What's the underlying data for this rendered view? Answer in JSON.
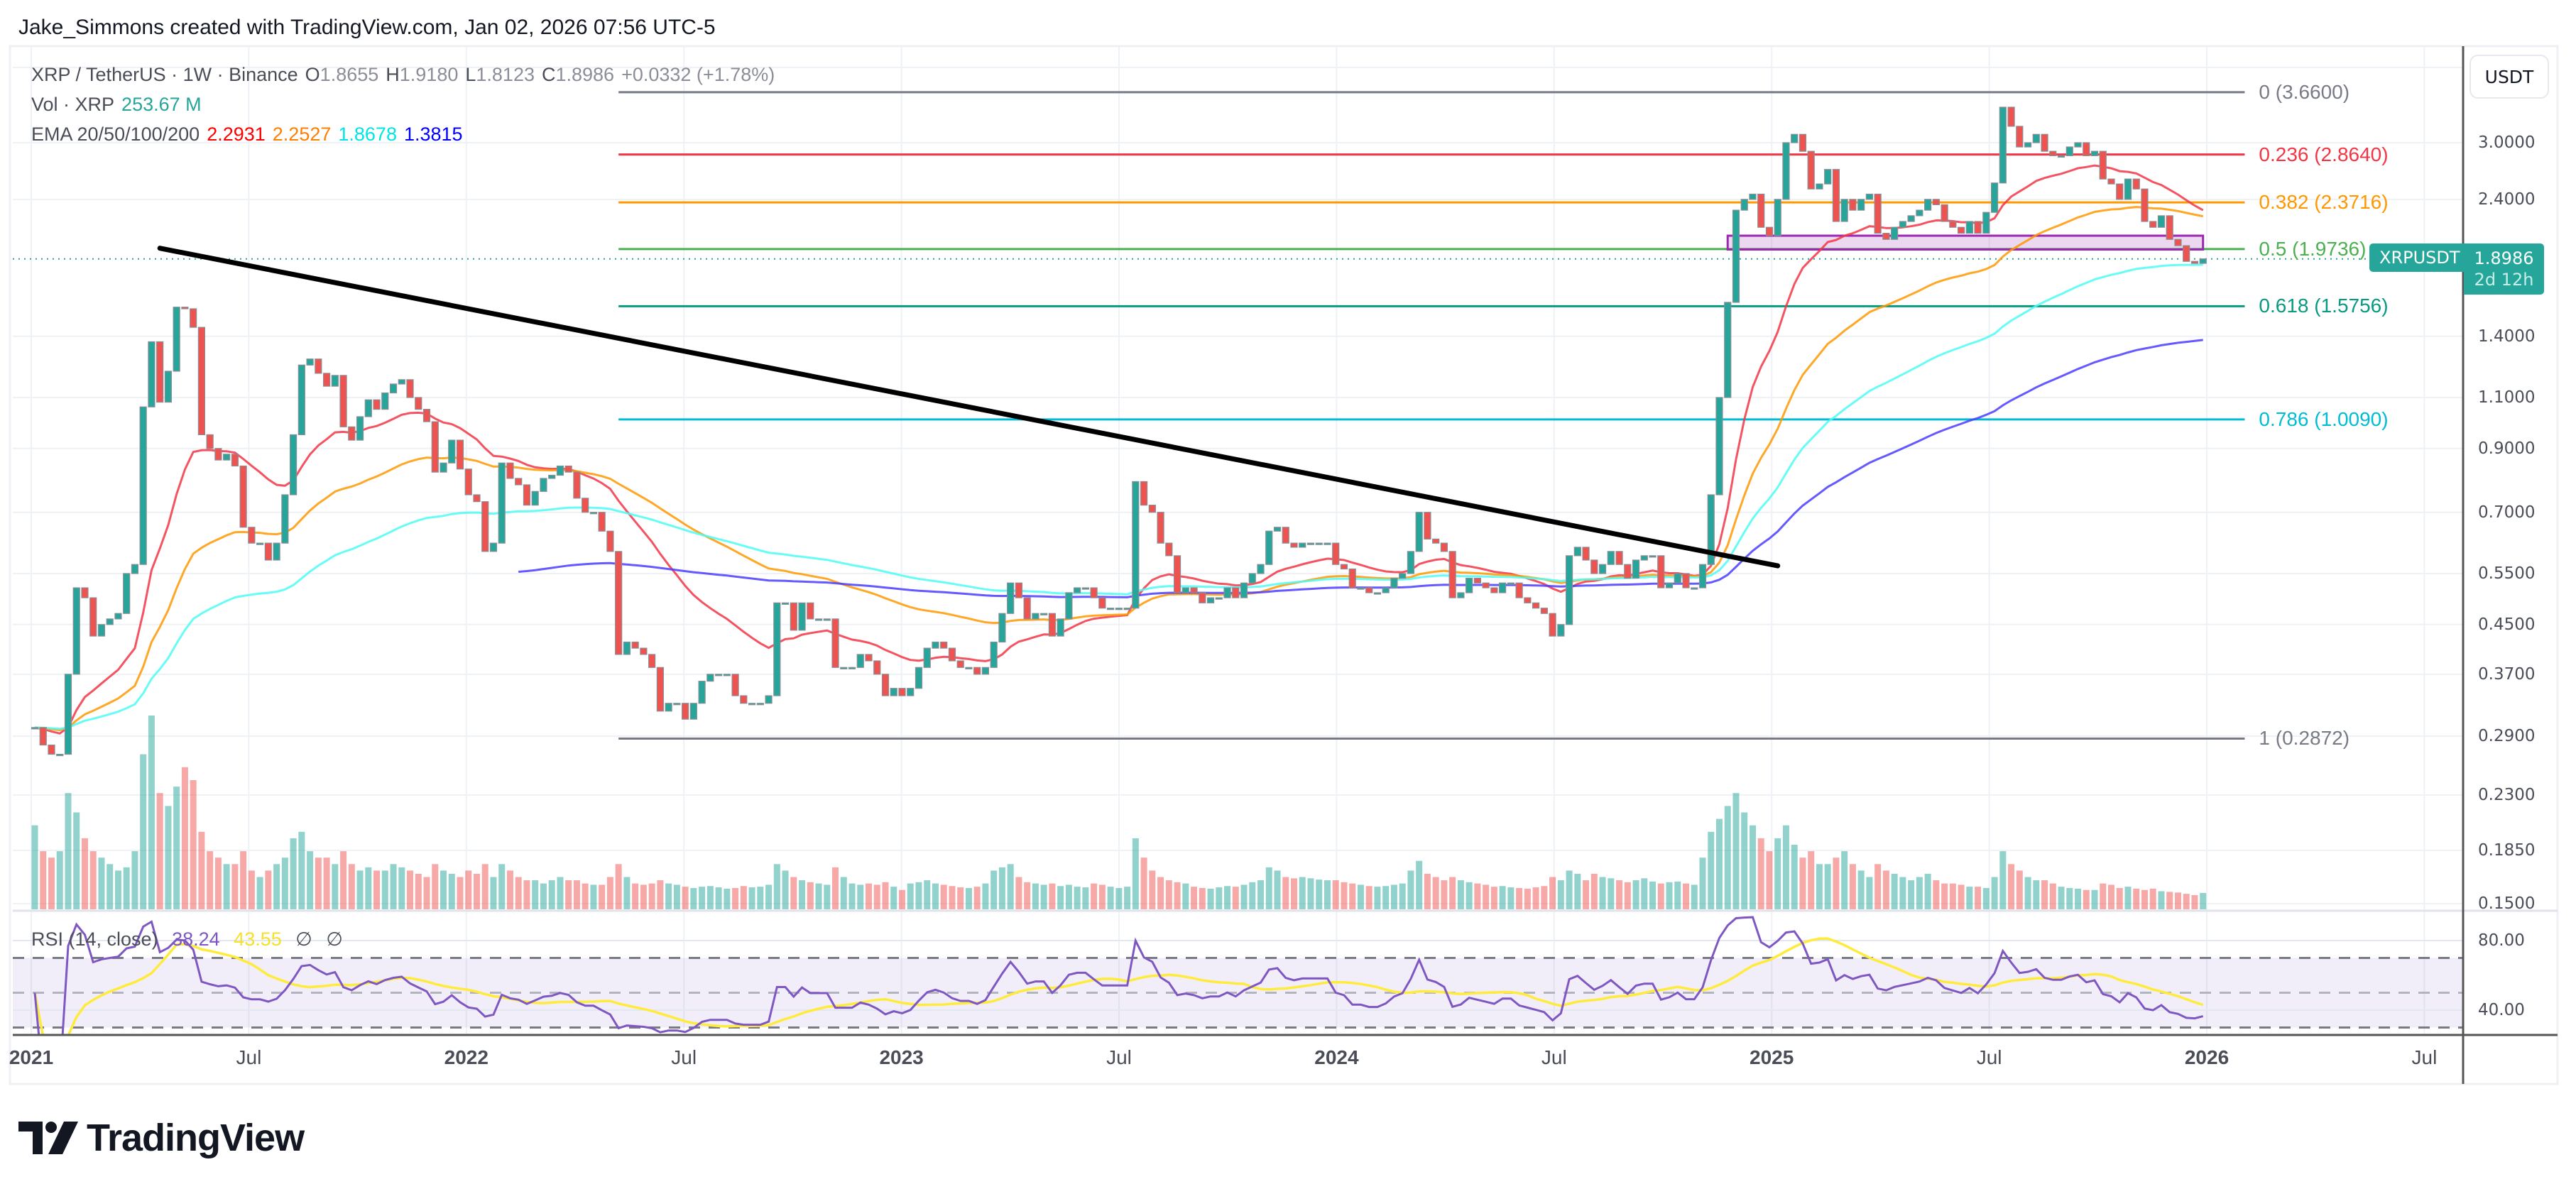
{
  "header": {
    "credit": "Jake_Simmons created with TradingView.com, Jan 02, 2026 07:56 UTC-5"
  },
  "legend": {
    "symbol": "XRP / TetherUS · 1W · Binance",
    "o_label": "O",
    "o": "1.8655",
    "h_label": "H",
    "h": "1.9180",
    "l_label": "L",
    "l": "1.8123",
    "c_label": "C",
    "c": "1.8986",
    "change": "+0.0332 (+1.78%)",
    "vol_label": "Vol · XRP",
    "vol": "253.67 M",
    "ema_label": "EMA 20/50/100/200",
    "ema_values": [
      "2.2931",
      "2.2527",
      "1.8678",
      "1.3815"
    ]
  },
  "price_axis": {
    "currency": "USDT",
    "ticks": [
      {
        "value": 3.0,
        "label": "3.0000"
      },
      {
        "value": 2.4,
        "label": "2.4000"
      },
      {
        "value": 1.4,
        "label": "1.4000"
      },
      {
        "value": 1.1,
        "label": "1.1000"
      },
      {
        "value": 0.9,
        "label": "0.9000"
      },
      {
        "value": 0.7,
        "label": "0.7000"
      },
      {
        "value": 0.55,
        "label": "0.5500"
      },
      {
        "value": 0.45,
        "label": "0.4500"
      },
      {
        "value": 0.37,
        "label": "0.3700"
      },
      {
        "value": 0.29,
        "label": "0.2900"
      },
      {
        "value": 0.23,
        "label": "0.2300"
      },
      {
        "value": 0.185,
        "label": "0.1850"
      },
      {
        "value": 0.15,
        "label": "0.1500"
      }
    ]
  },
  "price_tag": {
    "symbol": "XRPUSDT",
    "price": "1.8986",
    "countdown": "2d 12h"
  },
  "fib": [
    {
      "ratio": "0",
      "price": 3.66,
      "label": "0 (3.6600)",
      "color": "#787b86"
    },
    {
      "ratio": "0.236",
      "price": 2.864,
      "label": "0.236 (2.8640)",
      "color": "#f23645"
    },
    {
      "ratio": "0.382",
      "price": 2.3716,
      "label": "0.382 (2.3716)",
      "color": "#ff9800"
    },
    {
      "ratio": "0.5",
      "price": 1.9736,
      "label": "0.5 (1.9736)",
      "color": "#4caf50"
    },
    {
      "ratio": "0.618",
      "price": 1.5756,
      "label": "0.618 (1.5756)",
      "color": "#089981"
    },
    {
      "ratio": "0.786",
      "price": 1.009,
      "label": "0.786 (1.0090)",
      "color": "#00bcd4"
    },
    {
      "ratio": "1",
      "price": 0.2872,
      "label": "1 (0.2872)",
      "color": "#787b86"
    }
  ],
  "time_axis": [
    "2021",
    "Jul",
    "2022",
    "Jul",
    "2023",
    "Jul",
    "2024",
    "Jul",
    "2025",
    "Jul",
    "2026",
    "Jul"
  ],
  "rsi": {
    "label": "RSI (14, close)",
    "value": "38.24",
    "ma_value": "43.55",
    "flags": [
      "∅",
      "∅"
    ],
    "ticks": [
      {
        "value": 80,
        "label": "80.00"
      },
      {
        "value": 40,
        "label": "40.00"
      }
    ],
    "bands": [
      70,
      50,
      30
    ],
    "colors": {
      "rsi": "#7e57c2",
      "ma": "#ffeb3b"
    }
  },
  "logo": "TradingView",
  "chart_data": {
    "type": "candlestick",
    "interval": "1W",
    "yscale": "log",
    "ylim": [
      0.14,
      4.2
    ],
    "colors": {
      "up": "#26a69a",
      "down": "#ef5350",
      "ema": [
        "#ff0000",
        "#ff8000",
        "#00ffff",
        "#0000ff"
      ]
    },
    "ema_periods": [
      20,
      50,
      100,
      200
    ],
    "closes": [
      0.3,
      0.28,
      0.27,
      0.27,
      0.37,
      0.52,
      0.5,
      0.43,
      0.45,
      0.46,
      0.47,
      0.55,
      0.57,
      1.06,
      1.37,
      1.08,
      1.22,
      1.57,
      1.56,
      1.45,
      0.95,
      0.9,
      0.86,
      0.88,
      0.84,
      0.66,
      0.62,
      0.62,
      0.58,
      0.62,
      0.75,
      0.95,
      1.25,
      1.28,
      1.21,
      1.15,
      1.2,
      0.98,
      0.93,
      1.02,
      1.09,
      1.05,
      1.12,
      1.16,
      1.18,
      1.1,
      1.05,
      1.0,
      0.82,
      0.85,
      0.93,
      0.83,
      0.75,
      0.73,
      0.6,
      0.62,
      0.85,
      0.8,
      0.78,
      0.72,
      0.76,
      0.8,
      0.81,
      0.84,
      0.82,
      0.74,
      0.7,
      0.7,
      0.65,
      0.6,
      0.4,
      0.42,
      0.41,
      0.4,
      0.38,
      0.32,
      0.33,
      0.33,
      0.31,
      0.33,
      0.36,
      0.37,
      0.37,
      0.37,
      0.34,
      0.33,
      0.33,
      0.33,
      0.34,
      0.49,
      0.49,
      0.44,
      0.49,
      0.46,
      0.46,
      0.46,
      0.38,
      0.38,
      0.38,
      0.4,
      0.39,
      0.37,
      0.34,
      0.35,
      0.34,
      0.35,
      0.38,
      0.41,
      0.42,
      0.41,
      0.39,
      0.38,
      0.38,
      0.37,
      0.38,
      0.42,
      0.47,
      0.53,
      0.5,
      0.46,
      0.47,
      0.47,
      0.43,
      0.46,
      0.51,
      0.52,
      0.52,
      0.5,
      0.48,
      0.48,
      0.48,
      0.48,
      0.79,
      0.72,
      0.7,
      0.62,
      0.59,
      0.51,
      0.52,
      0.51,
      0.49,
      0.5,
      0.5,
      0.52,
      0.5,
      0.53,
      0.55,
      0.57,
      0.65,
      0.66,
      0.62,
      0.61,
      0.62,
      0.62,
      0.62,
      0.62,
      0.57,
      0.56,
      0.52,
      0.52,
      0.51,
      0.51,
      0.52,
      0.54,
      0.55,
      0.6,
      0.7,
      0.63,
      0.62,
      0.6,
      0.5,
      0.51,
      0.54,
      0.53,
      0.52,
      0.51,
      0.53,
      0.53,
      0.5,
      0.49,
      0.48,
      0.47,
      0.43,
      0.45,
      0.59,
      0.61,
      0.58,
      0.55,
      0.57,
      0.6,
      0.57,
      0.54,
      0.58,
      0.59,
      0.59,
      0.52,
      0.53,
      0.55,
      0.52,
      0.52,
      0.57,
      0.75,
      1.1,
      1.6,
      2.3,
      2.4,
      2.45,
      2.15,
      2.08,
      2.4,
      3.0,
      3.1,
      2.9,
      2.5,
      2.55,
      2.7,
      2.2,
      2.4,
      2.3,
      2.4,
      2.45,
      2.1,
      2.05,
      2.15,
      2.2,
      2.25,
      2.3,
      2.4,
      2.35,
      2.2,
      2.15,
      2.1,
      2.2,
      2.1,
      2.28,
      2.56,
      3.45,
      3.2,
      2.95,
      3.0,
      3.1,
      2.9,
      2.85,
      2.85,
      2.95,
      3.0,
      2.85,
      2.9,
      2.6,
      2.55,
      2.4,
      2.6,
      2.5,
      2.2,
      2.15,
      2.25,
      2.05,
      2.0,
      1.88,
      1.8654,
      1.8986
    ],
    "volumes_m": [
      1300,
      900,
      800,
      900,
      1800,
      1500,
      1100,
      900,
      800,
      700,
      600,
      650,
      900,
      2400,
      3000,
      1800,
      1600,
      1900,
      2200,
      2000,
      1200,
      900,
      800,
      700,
      700,
      900,
      600,
      500,
      600,
      700,
      800,
      1100,
      1200,
      900,
      800,
      800,
      700,
      900,
      700,
      600,
      650,
      600,
      600,
      700,
      650,
      600,
      550,
      500,
      700,
      600,
      550,
      500,
      600,
      550,
      700,
      500,
      700,
      600,
      500,
      450,
      450,
      400,
      450,
      500,
      450,
      450,
      400,
      380,
      380,
      500,
      700,
      500,
      400,
      380,
      400,
      450,
      400,
      380,
      350,
      330,
      350,
      360,
      340,
      320,
      330,
      360,
      340,
      350,
      380,
      700,
      600,
      500,
      450,
      420,
      400,
      380,
      650,
      500,
      400,
      380,
      400,
      380,
      420,
      350,
      300,
      400,
      420,
      450,
      400,
      380,
      360,
      340,
      330,
      350,
      400,
      600,
      650,
      700,
      500,
      420,
      400,
      380,
      400,
      360,
      380,
      350,
      340,
      400,
      380,
      350,
      330,
      350,
      1100,
      800,
      600,
      500,
      450,
      420,
      400,
      350,
      330,
      320,
      340,
      360,
      350,
      380,
      420,
      450,
      650,
      600,
      500,
      480,
      500,
      480,
      460,
      450,
      450,
      420,
      400,
      380,
      360,
      350,
      360,
      380,
      400,
      600,
      750,
      550,
      500,
      450,
      500,
      450,
      420,
      400,
      380,
      350,
      360,
      340,
      330,
      320,
      340,
      360,
      500,
      450,
      600,
      550,
      450,
      550,
      500,
      480,
      450,
      420,
      450,
      480,
      430,
      400,
      420,
      430,
      400,
      380,
      800,
      1200,
      1400,
      1600,
      1800,
      1500,
      1300,
      1100,
      900,
      1100,
      1300,
      1000,
      800,
      900,
      700,
      700,
      800,
      900,
      700,
      600,
      500,
      700,
      600,
      550,
      500,
      450,
      500,
      550,
      450,
      400,
      400,
      380,
      350,
      350,
      330,
      500,
      900,
      700,
      600,
      500,
      450,
      450,
      400,
      350,
      330,
      320,
      300,
      300,
      400,
      380,
      330,
      350,
      320,
      300,
      320,
      280,
      270,
      260,
      240,
      220,
      253.67
    ],
    "trendline": {
      "start": {
        "date": "2021-04-19",
        "price": 1.98
      },
      "end": {
        "date": "2025-01-06",
        "price": 0.567
      },
      "color": "#000000"
    },
    "zone": {
      "start": "2024-11-25",
      "end": "2025-12-29",
      "top": 2.08,
      "bottom": 1.97,
      "color": "#9c27b0"
    },
    "fib_range": {
      "start": "2022-05-09",
      "end": "2026-02-02"
    },
    "last_price": 1.8986
  }
}
